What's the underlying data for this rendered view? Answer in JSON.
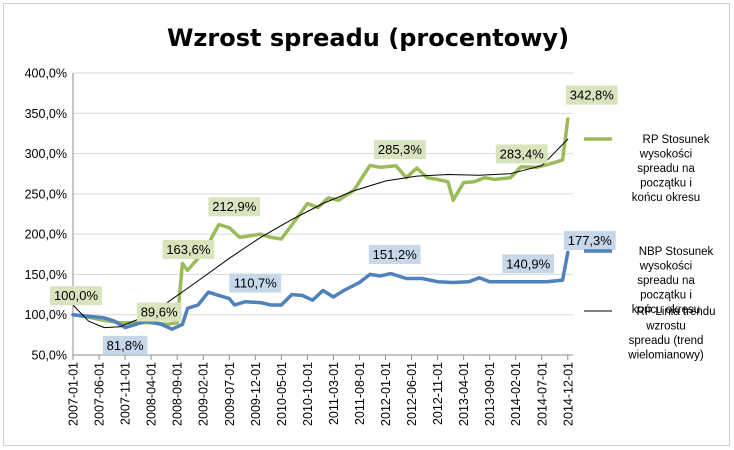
{
  "chart_data": {
    "type": "line",
    "title": "Wzrost spreadu (procentowy)",
    "xlabel": "",
    "ylabel": "",
    "ylim": [
      50,
      400
    ],
    "y_ticks": [
      "50,0%",
      "100,0%",
      "150,0%",
      "200,0%",
      "250,0%",
      "300,0%",
      "350,0%",
      "400,0%"
    ],
    "x_ticks": [
      "2007-01-01",
      "2007-06-01",
      "2007-11-01",
      "2008-04-01",
      "2008-09-01",
      "2009-02-01",
      "2009-07-01",
      "2009-12-01",
      "2010-05-01",
      "2010-10-01",
      "2011-03-01",
      "2011-08-01",
      "2012-01-01",
      "2012-06-01",
      "2012-11-01",
      "2013-04-01",
      "2013-09-01",
      "2014-02-01",
      "2014-07-01",
      "2014-12-01"
    ],
    "x_range": [
      "2007-01",
      "2015-01"
    ],
    "grid": "horizontal",
    "legend_position": "right",
    "series": [
      {
        "name": "RP Stosunek wysokości spreadu na początku i końcu okresu",
        "color": "#9bbb59",
        "points": [
          [
            "2007-01",
            100
          ],
          [
            "2007-04",
            97
          ],
          [
            "2007-07",
            93
          ],
          [
            "2007-10",
            90
          ],
          [
            "2008-01",
            90
          ],
          [
            "2008-04",
            90
          ],
          [
            "2008-07",
            88
          ],
          [
            "2008-09",
            90
          ],
          [
            "2008-10",
            163.6
          ],
          [
            "2008-11",
            155
          ],
          [
            "2009-01",
            170
          ],
          [
            "2009-03",
            188
          ],
          [
            "2009-05",
            212
          ],
          [
            "2009-07",
            208
          ],
          [
            "2009-09",
            196
          ],
          [
            "2009-11",
            198
          ],
          [
            "2010-01",
            200
          ],
          [
            "2010-03",
            196
          ],
          [
            "2010-05",
            194
          ],
          [
            "2010-08",
            220
          ],
          [
            "2010-10",
            238
          ],
          [
            "2010-12",
            233
          ],
          [
            "2011-02",
            245
          ],
          [
            "2011-04",
            242
          ],
          [
            "2011-07",
            255
          ],
          [
            "2011-10",
            285.3
          ],
          [
            "2011-12",
            283
          ],
          [
            "2012-03",
            285
          ],
          [
            "2012-05",
            270
          ],
          [
            "2012-07",
            282
          ],
          [
            "2012-09",
            270
          ],
          [
            "2012-11",
            268
          ],
          [
            "2013-01",
            265
          ],
          [
            "2013-02",
            242
          ],
          [
            "2013-04",
            264
          ],
          [
            "2013-06",
            265
          ],
          [
            "2013-08",
            270
          ],
          [
            "2013-10",
            268
          ],
          [
            "2014-01",
            270
          ],
          [
            "2014-03",
            283.4
          ],
          [
            "2014-06",
            283
          ],
          [
            "2014-09",
            288
          ],
          [
            "2014-11",
            292
          ],
          [
            "2014-12",
            342.8
          ]
        ],
        "labels": [
          {
            "x": "2007-01",
            "y": 100,
            "text": "100,0%"
          },
          {
            "x": "2008-04",
            "y": 89.6,
            "text": "89,6%"
          },
          {
            "x": "2008-10",
            "y": 163.6,
            "text": "163,6%"
          },
          {
            "x": "2009-07",
            "y": 212.9,
            "text": "212,9%"
          },
          {
            "x": "2012-03",
            "y": 285.3,
            "text": "285,3%"
          },
          {
            "x": "2014-02",
            "y": 283.4,
            "text": "283,4%"
          },
          {
            "x": "2014-12",
            "y": 342.8,
            "text": "342,8%"
          }
        ]
      },
      {
        "name": "NBP Stosunek wysokości spreadu na początku i końcu okresu",
        "color": "#4f81bd",
        "points": [
          [
            "2007-01",
            100
          ],
          [
            "2007-04",
            98
          ],
          [
            "2007-07",
            96
          ],
          [
            "2007-09",
            92
          ],
          [
            "2007-11",
            84
          ],
          [
            "2008-01",
            88
          ],
          [
            "2008-03",
            92
          ],
          [
            "2008-06",
            88
          ],
          [
            "2008-08",
            82
          ],
          [
            "2008-10",
            88
          ],
          [
            "2008-11",
            108
          ],
          [
            "2009-01",
            112
          ],
          [
            "2009-03",
            128
          ],
          [
            "2009-05",
            124
          ],
          [
            "2009-07",
            120
          ],
          [
            "2009-08",
            112
          ],
          [
            "2009-10",
            116
          ],
          [
            "2010-01",
            115
          ],
          [
            "2010-03",
            112
          ],
          [
            "2010-05",
            112
          ],
          [
            "2010-07",
            125
          ],
          [
            "2010-09",
            124
          ],
          [
            "2010-11",
            118
          ],
          [
            "2011-01",
            130
          ],
          [
            "2011-03",
            122
          ],
          [
            "2011-05",
            130
          ],
          [
            "2011-08",
            140
          ],
          [
            "2011-10",
            150
          ],
          [
            "2011-12",
            148
          ],
          [
            "2012-02",
            151
          ],
          [
            "2012-05",
            145
          ],
          [
            "2012-08",
            145
          ],
          [
            "2012-11",
            141
          ],
          [
            "2013-02",
            140
          ],
          [
            "2013-05",
            141
          ],
          [
            "2013-07",
            146
          ],
          [
            "2013-09",
            141
          ],
          [
            "2014-01",
            141
          ],
          [
            "2014-04",
            141
          ],
          [
            "2014-08",
            141
          ],
          [
            "2014-11",
            143
          ],
          [
            "2014-12",
            177.3
          ]
        ],
        "labels": [
          {
            "x": "2007-11",
            "y": 81.8,
            "text": "81,8%"
          },
          {
            "x": "2009-12",
            "y": 110.7,
            "text": "110,7%"
          },
          {
            "x": "2012-02",
            "y": 151.2,
            "text": "151,2%"
          },
          {
            "x": "2014-04",
            "y": 140.9,
            "text": "140,9%"
          },
          {
            "x": "2014-12",
            "y": 177.3,
            "text": "177,3%"
          }
        ]
      },
      {
        "name": "RP Linia trendu wzrostu spreadu (trend wielomianowy)",
        "color": "#000000",
        "points": [
          [
            "2007-01",
            112
          ],
          [
            "2007-04",
            92
          ],
          [
            "2007-07",
            84
          ],
          [
            "2007-10",
            85
          ],
          [
            "2008-01",
            93
          ],
          [
            "2008-06",
            110
          ],
          [
            "2009-01",
            142
          ],
          [
            "2009-07",
            170
          ],
          [
            "2010-01",
            196
          ],
          [
            "2010-07",
            218
          ],
          [
            "2011-01",
            238
          ],
          [
            "2011-07",
            254
          ],
          [
            "2012-01",
            266
          ],
          [
            "2012-07",
            272
          ],
          [
            "2013-01",
            274
          ],
          [
            "2013-07",
            273
          ],
          [
            "2014-01",
            275
          ],
          [
            "2014-07",
            285
          ],
          [
            "2014-12",
            318
          ]
        ]
      }
    ]
  }
}
